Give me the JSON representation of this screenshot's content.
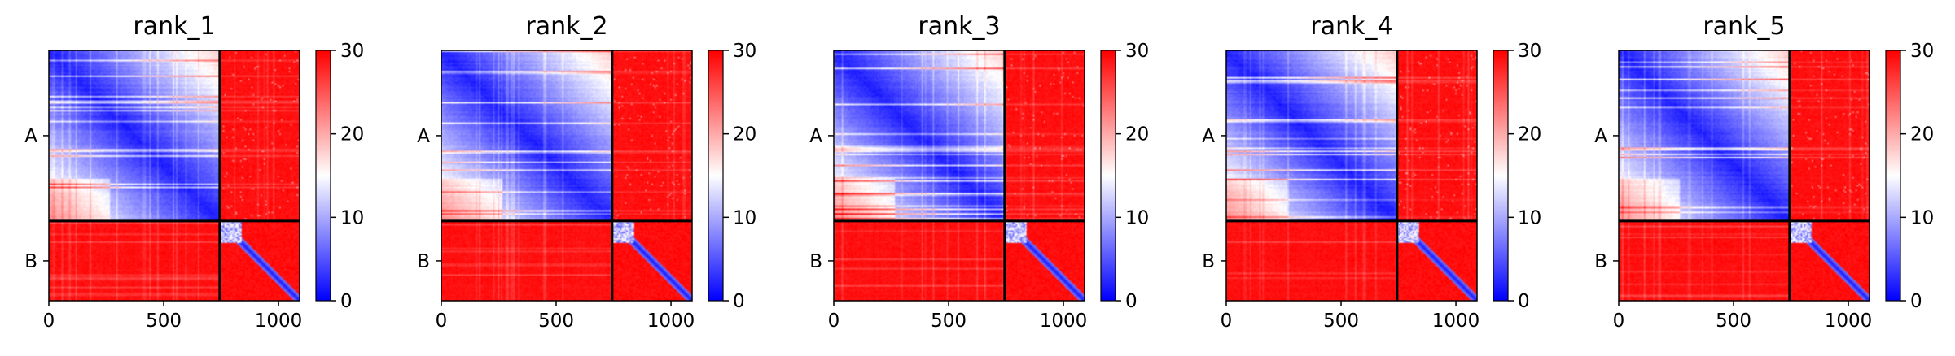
{
  "colors": {
    "low": "#0000ff",
    "mid": "#ffffff",
    "high": "#ff0000",
    "axis": "#000000"
  },
  "chart_data": [
    {
      "type": "heatmap",
      "title": "rank_1",
      "x_ticks": [
        0,
        500,
        1000
      ],
      "x_tick_labels": [
        "0",
        "500",
        "1000"
      ],
      "xlim": [
        0,
        1092
      ],
      "chains": [
        {
          "label": "A",
          "start": 0,
          "end": 744
        },
        {
          "label": "B",
          "start": 744,
          "end": 1092
        }
      ],
      "colorbar": {
        "min": 0,
        "max": 30,
        "ticks": [
          0,
          10,
          20,
          30
        ],
        "tick_labels": [
          "0",
          "10",
          "20",
          "30"
        ]
      }
    },
    {
      "type": "heatmap",
      "title": "rank_2",
      "x_ticks": [
        0,
        500,
        1000
      ],
      "x_tick_labels": [
        "0",
        "500",
        "1000"
      ],
      "xlim": [
        0,
        1092
      ],
      "chains": [
        {
          "label": "A",
          "start": 0,
          "end": 744
        },
        {
          "label": "B",
          "start": 744,
          "end": 1092
        }
      ],
      "colorbar": {
        "min": 0,
        "max": 30,
        "ticks": [
          0,
          10,
          20,
          30
        ],
        "tick_labels": [
          "0",
          "10",
          "20",
          "30"
        ]
      }
    },
    {
      "type": "heatmap",
      "title": "rank_3",
      "x_ticks": [
        0,
        500,
        1000
      ],
      "x_tick_labels": [
        "0",
        "500",
        "1000"
      ],
      "xlim": [
        0,
        1092
      ],
      "chains": [
        {
          "label": "A",
          "start": 0,
          "end": 744
        },
        {
          "label": "B",
          "start": 744,
          "end": 1092
        }
      ],
      "colorbar": {
        "min": 0,
        "max": 30,
        "ticks": [
          0,
          10,
          20,
          30
        ],
        "tick_labels": [
          "0",
          "10",
          "20",
          "30"
        ]
      }
    },
    {
      "type": "heatmap",
      "title": "rank_4",
      "x_ticks": [
        0,
        500,
        1000
      ],
      "x_tick_labels": [
        "0",
        "500",
        "1000"
      ],
      "xlim": [
        0,
        1092
      ],
      "chains": [
        {
          "label": "A",
          "start": 0,
          "end": 744
        },
        {
          "label": "B",
          "start": 744,
          "end": 1092
        }
      ],
      "colorbar": {
        "min": 0,
        "max": 30,
        "ticks": [
          0,
          10,
          20,
          30
        ],
        "tick_labels": [
          "0",
          "10",
          "20",
          "30"
        ]
      }
    },
    {
      "type": "heatmap",
      "title": "rank_5",
      "x_ticks": [
        0,
        500,
        1000
      ],
      "x_tick_labels": [
        "0",
        "500",
        "1000"
      ],
      "xlim": [
        0,
        1092
      ],
      "chains": [
        {
          "label": "A",
          "start": 0,
          "end": 744
        },
        {
          "label": "B",
          "start": 744,
          "end": 1092
        }
      ],
      "colorbar": {
        "min": 0,
        "max": 30,
        "ticks": [
          0,
          10,
          20,
          30
        ],
        "tick_labels": [
          "0",
          "10",
          "20",
          "30"
        ]
      }
    }
  ]
}
